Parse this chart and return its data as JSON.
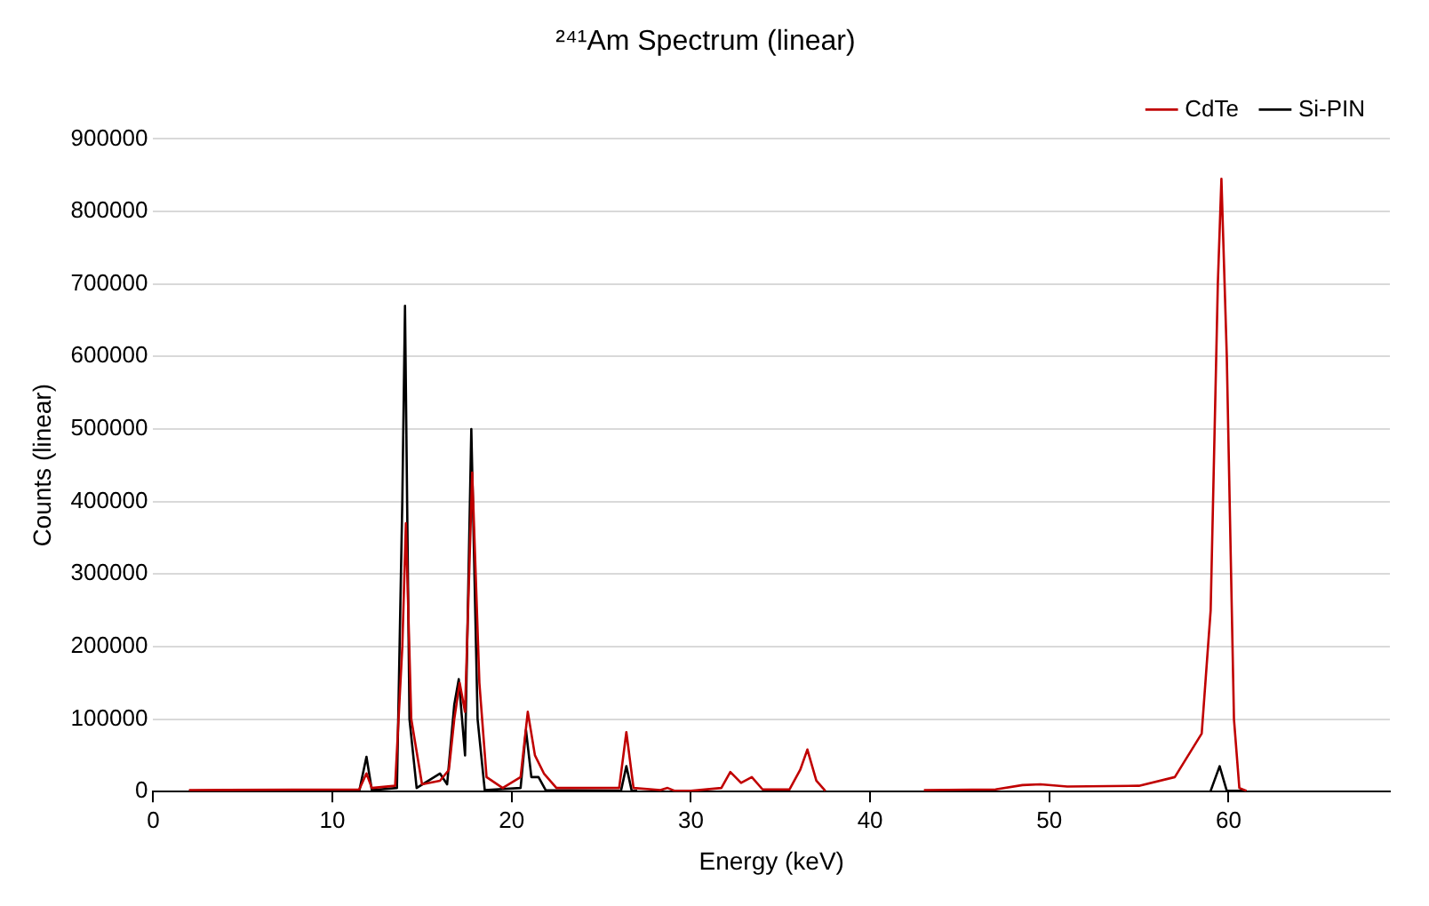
{
  "chart_data": {
    "type": "line",
    "title": "²⁴¹Am Spectrum (linear)",
    "xlabel": "Energy (keV)",
    "ylabel": "Counts (linear)",
    "xlim": [
      0,
      69
    ],
    "xticks": [
      0,
      10,
      20,
      30,
      40,
      50,
      60
    ],
    "ylim": [
      0,
      900000
    ],
    "yticks": [
      0,
      100000,
      200000,
      300000,
      400000,
      500000,
      600000,
      700000,
      800000,
      900000
    ],
    "grid": "y",
    "legend": "top right",
    "marker": "none",
    "line_style": "solid",
    "series": [
      {
        "name": "CdTe",
        "color": "#c00000",
        "x": [
          2,
          11.5,
          11.9,
          12.2,
          13.5,
          13.9,
          14.1,
          14.4,
          15,
          16,
          16.5,
          16.8,
          17.1,
          17.4,
          17.8,
          18.2,
          18.6,
          19.5,
          20.5,
          20.9,
          21.3,
          21.8,
          22.5,
          26,
          26.4,
          26.8,
          28.3,
          28.7,
          29.1,
          30,
          31.7,
          32.2,
          32.8,
          33.4,
          34,
          35.5,
          36.1,
          36.5,
          37,
          37.5,
          40,
          43,
          47,
          48.5,
          49.5,
          51,
          55,
          57,
          58.5,
          59,
          59.4,
          59.6,
          59.9,
          60.3,
          60.6,
          61
        ],
        "values": [
          2000,
          3000,
          25000,
          5000,
          8000,
          200000,
          370000,
          100000,
          10000,
          15000,
          30000,
          100000,
          150000,
          110000,
          440000,
          150000,
          20000,
          5000,
          20000,
          110000,
          50000,
          25000,
          5000,
          5000,
          82000,
          5000,
          2000,
          5000,
          1000,
          1000,
          5000,
          27000,
          12000,
          20000,
          3000,
          3000,
          30000,
          58000,
          15000,
          1000,
          null,
          2000,
          3000,
          9000,
          10000,
          7000,
          8000,
          20000,
          80000,
          250000,
          700000,
          845000,
          600000,
          100000,
          5000,
          1000
        ]
      },
      {
        "name": "Si-PIN",
        "color": "#000000",
        "x": [
          2,
          11.5,
          11.9,
          12.2,
          13.6,
          13.9,
          14.05,
          14.3,
          14.7,
          16,
          16.4,
          16.8,
          17.05,
          17.4,
          17.75,
          18.1,
          18.5,
          20.5,
          20.8,
          21.1,
          21.5,
          21.9,
          26.1,
          26.4,
          26.7,
          27,
          40,
          59,
          59.5,
          59.9,
          61
        ],
        "values": [
          1000,
          1000,
          48000,
          2000,
          5000,
          400000,
          670000,
          100000,
          5000,
          25000,
          10000,
          120000,
          155000,
          50000,
          500000,
          100000,
          2000,
          5000,
          85000,
          20000,
          20000,
          2000,
          1000,
          35000,
          1000,
          1000,
          null,
          1000,
          35000,
          1000,
          1000
        ]
      }
    ]
  }
}
